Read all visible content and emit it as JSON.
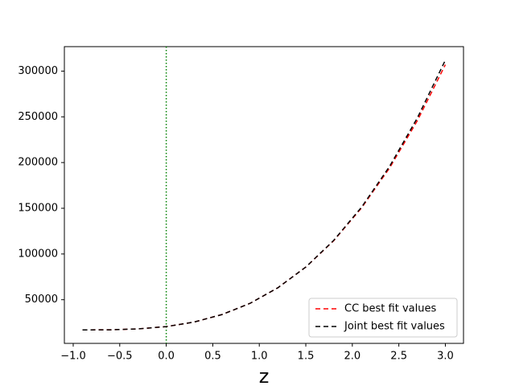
{
  "chart_data": {
    "type": "line",
    "x_label": "z",
    "x": [
      -0.9,
      -0.6,
      -0.3,
      0.0,
      0.3,
      0.6,
      0.9,
      1.2,
      1.5,
      1.8,
      2.1,
      2.4,
      2.7,
      3.0
    ],
    "series": [
      {
        "name": "CC best fit values",
        "color": "#ff0000",
        "dash": "6,4",
        "values": [
          17000,
          17100,
          18100,
          20600,
          25600,
          33800,
          46000,
          63100,
          85700,
          114500,
          150500,
          194000,
          246000,
          307000
        ]
      },
      {
        "name": "Joint best fit values",
        "color": "#000000",
        "dash": "6,4",
        "values": [
          17000,
          17100,
          18100,
          20600,
          25600,
          33800,
          46000,
          63100,
          85700,
          114900,
          151300,
          195700,
          249000,
          312000
        ]
      }
    ],
    "vline": 0.0,
    "vline_color": "#008000",
    "xlim": [
      -1.095,
      3.195
    ],
    "xticks": [
      {
        "value": -1.0,
        "label": "−1.0"
      },
      {
        "value": -0.5,
        "label": "−0.5"
      },
      {
        "value": 0.0,
        "label": "0.0"
      },
      {
        "value": 0.5,
        "label": "0.5"
      },
      {
        "value": 1.0,
        "label": "1.0"
      },
      {
        "value": 1.5,
        "label": "1.5"
      },
      {
        "value": 2.0,
        "label": "2.0"
      },
      {
        "value": 2.5,
        "label": "2.5"
      },
      {
        "value": 3.0,
        "label": "3.0"
      }
    ],
    "ylim": [
      2250,
      326750
    ],
    "yticks": [
      50000,
      100000,
      150000,
      200000,
      250000,
      300000
    ],
    "legend": "lower right",
    "grid": false
  }
}
